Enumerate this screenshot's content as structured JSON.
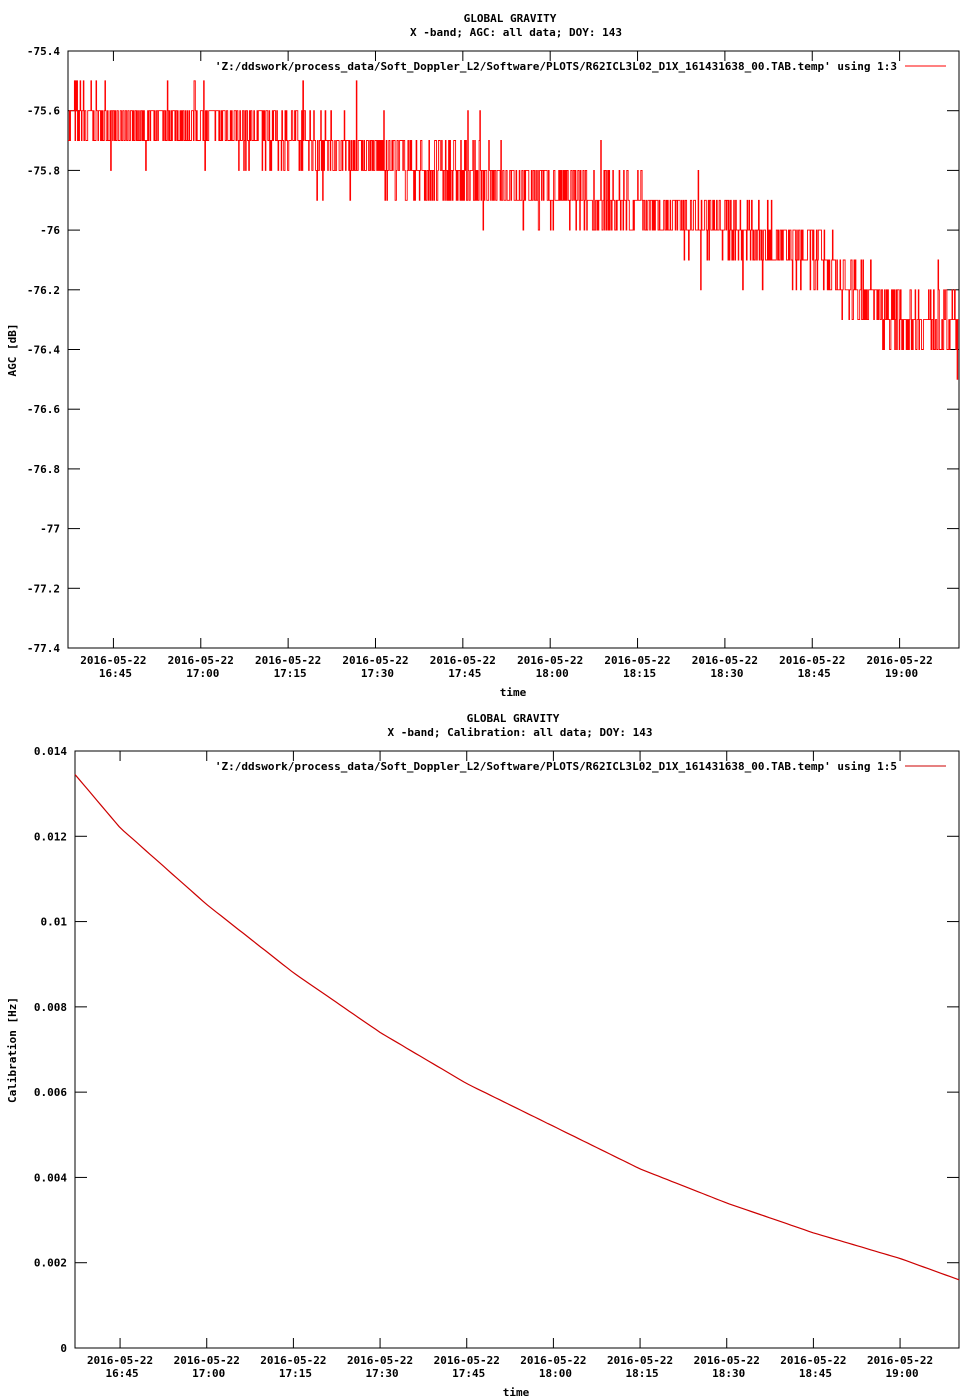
{
  "chart_data": [
    {
      "type": "line",
      "title": "GLOBAL GRAVITY",
      "subtitle": "X -band; AGC: all data; DOY: 143",
      "xlabel": "time",
      "ylabel": "AGC [dB]",
      "ylim": [
        -77.4,
        -75.4
      ],
      "yticks": [
        -75.4,
        -75.6,
        -75.8,
        -76,
        -76.2,
        -76.4,
        -76.6,
        -76.8,
        -77,
        -77.2,
        -77.4
      ],
      "ytick_labels": [
        "-75.4",
        "-75.6",
        "-75.8",
        "-76",
        "-76.2",
        "-76.4",
        "-76.6",
        "-76.8",
        "-77",
        "-77.2",
        "-77.4"
      ],
      "xlim": [
        16.62,
        19.17
      ],
      "xticks": [
        16.75,
        17.0,
        17.25,
        17.5,
        17.75,
        18.0,
        18.25,
        18.5,
        18.75,
        19.0
      ],
      "xtick_dates": [
        "2016-05-22",
        "2016-05-22",
        "2016-05-22",
        "2016-05-22",
        "2016-05-22",
        "2016-05-22",
        "2016-05-22",
        "2016-05-22",
        "2016-05-22",
        "2016-05-22"
      ],
      "xtick_times": [
        "16:45",
        "17:00",
        "17:15",
        "17:30",
        "17:45",
        "18:00",
        "18:15",
        "18:30",
        "18:45",
        "19:00"
      ],
      "grid": false,
      "legend_position": "top-right",
      "series": [
        {
          "name": "'Z:/ddswork/process_data/Soft_Doppler_L2/Software/PLOTS/R62ICL3L02_D1X_161431638_00.TAB.temp' using 1:3",
          "color": "#ff0000",
          "trend_x": [
            16.62,
            16.75,
            17.0,
            17.25,
            17.5,
            17.75,
            18.0,
            18.25,
            18.5,
            18.75,
            19.0,
            19.17
          ],
          "trend_y": [
            -75.62,
            -75.65,
            -75.64,
            -75.69,
            -75.76,
            -75.82,
            -75.88,
            -75.93,
            -75.98,
            -76.1,
            -76.3,
            -76.32
          ],
          "noise_amplitude_db": 0.1,
          "step_db": 0.1
        }
      ]
    },
    {
      "type": "line",
      "title": "GLOBAL GRAVITY",
      "subtitle": "X -band; Calibration: all data; DOY: 143",
      "xlabel": "time",
      "ylabel": "Calibration [Hz]",
      "ylim": [
        0,
        0.014
      ],
      "yticks": [
        0,
        0.002,
        0.004,
        0.006,
        0.008,
        0.01,
        0.012,
        0.014
      ],
      "ytick_labels": [
        "0",
        "0.002",
        "0.004",
        "0.006",
        "0.008",
        "0.01",
        "0.012",
        "0.014"
      ],
      "xlim": [
        16.62,
        19.17
      ],
      "xticks": [
        16.75,
        17.0,
        17.25,
        17.5,
        17.75,
        18.0,
        18.25,
        18.5,
        18.75,
        19.0
      ],
      "xtick_dates": [
        "2016-05-22",
        "2016-05-22",
        "2016-05-22",
        "2016-05-22",
        "2016-05-22",
        "2016-05-22",
        "2016-05-22",
        "2016-05-22",
        "2016-05-22",
        "2016-05-22"
      ],
      "xtick_times": [
        "16:45",
        "17:00",
        "17:15",
        "17:30",
        "17:45",
        "18:00",
        "18:15",
        "18:30",
        "18:45",
        "19:00"
      ],
      "grid": false,
      "legend_position": "top-right",
      "series": [
        {
          "name": "'Z:/ddswork/process_data/Soft_Doppler_L2/Software/PLOTS/R62ICL3L02_D1X_161431638_00.TAB.temp' using 1:5",
          "color": "#cc0000",
          "x": [
            16.62,
            16.75,
            17.0,
            17.25,
            17.5,
            17.75,
            18.0,
            18.25,
            18.5,
            18.75,
            19.0,
            19.17
          ],
          "y": [
            0.01345,
            0.0122,
            0.0104,
            0.0088,
            0.0074,
            0.0062,
            0.0052,
            0.0042,
            0.0034,
            0.0027,
            0.0021,
            0.0016
          ]
        }
      ]
    }
  ]
}
